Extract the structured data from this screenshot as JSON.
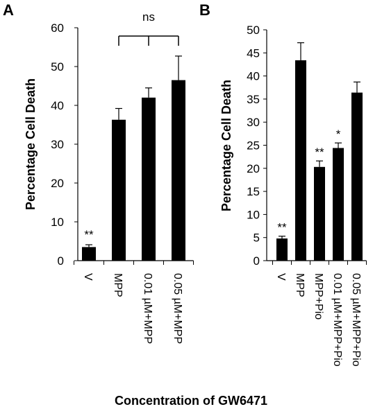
{
  "figure": {
    "x_title": "Concentration of GW6471"
  },
  "chart_data": [
    {
      "panel": "A",
      "type": "bar",
      "ylabel": "Percentage Cell Death",
      "ylim": [
        0,
        60
      ],
      "yticks": [
        "0",
        "10",
        "20",
        "30",
        "40",
        "50",
        "60"
      ],
      "categories": [
        "V",
        "MPP",
        "0.01 µM+MPP",
        "0.05 µM+MPP"
      ],
      "values": [
        3.5,
        36.3,
        42.0,
        46.5
      ],
      "errors": [
        0.6,
        2.9,
        2.5,
        6.2
      ],
      "annotations": [
        "**",
        "",
        "",
        ""
      ],
      "bracket": {
        "from": 1,
        "to": 3,
        "label": "ns"
      },
      "bar_color": "#000000"
    },
    {
      "panel": "B",
      "type": "bar",
      "ylabel": "Percentage Cell Death",
      "ylim": [
        0,
        50
      ],
      "yticks": [
        "0",
        "5",
        "10",
        "15",
        "20",
        "25",
        "30",
        "35",
        "40",
        "45",
        "50"
      ],
      "categories": [
        "V",
        "MPP",
        "MPP+Pio",
        "0.01 µM+MPP+Pio",
        "0.05 µM+MPP+Pio"
      ],
      "values": [
        4.8,
        43.4,
        20.3,
        24.4,
        36.4
      ],
      "errors": [
        0.5,
        3.8,
        1.3,
        1.1,
        2.3
      ],
      "annotations": [
        "**",
        "",
        "**",
        "*",
        ""
      ],
      "bar_color": "#000000"
    }
  ]
}
